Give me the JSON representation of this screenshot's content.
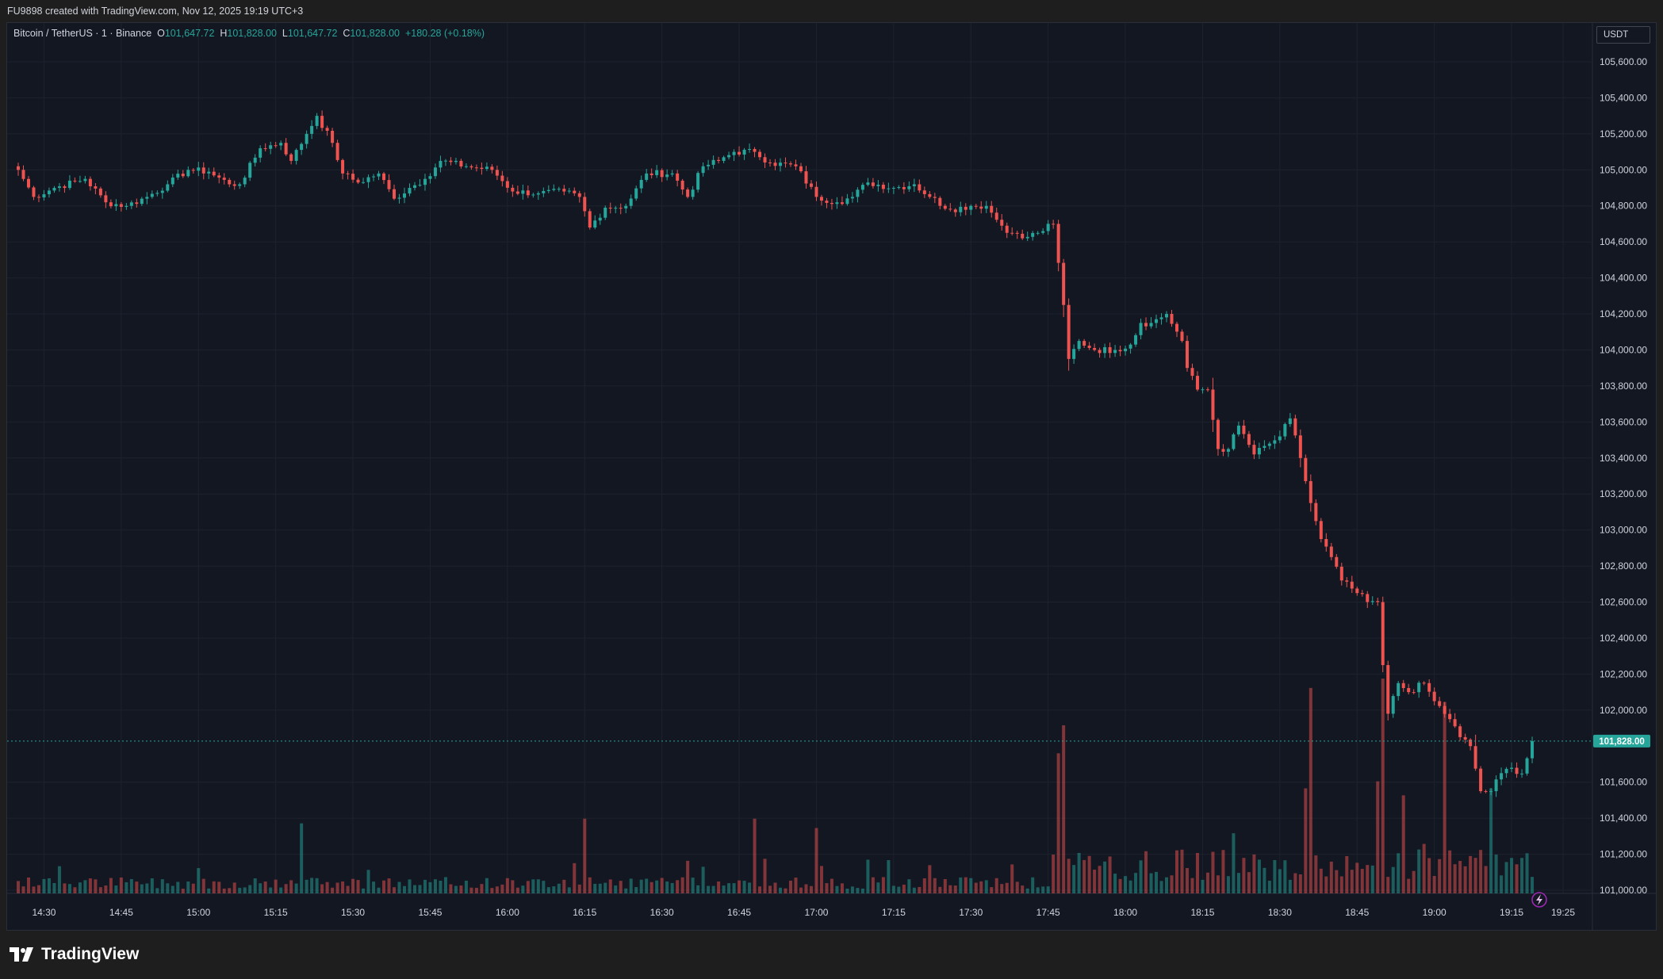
{
  "header": {
    "attribution": "FU9898 created with TradingView.com, Nov 12, 2025 19:19 UTC+3"
  },
  "legend": {
    "symbol": "Bitcoin / TetherUS · 1 · Binance",
    "open_key": "O",
    "open": "101,647.72",
    "high_key": "H",
    "high": "101,828.00",
    "low_key": "L",
    "low": "101,647.72",
    "close_key": "C",
    "close": "101,828.00",
    "change": "+180.28 (+0.18%)"
  },
  "currency_button": "USDT",
  "footer": {
    "brand": "TradingView",
    "logo_icon": "tradingview-logo-icon"
  },
  "colors": {
    "up": "#26a69a",
    "down": "#ef5350",
    "background": "#131722",
    "grid": "#1e222d",
    "text": "#d1d4dc"
  },
  "chart_data": {
    "type": "candlestick",
    "symbol": "BTCUSDT",
    "interval": "1",
    "y_axis": {
      "ylim": [
        100900,
        105650
      ],
      "ticks": [
        "105,600.00",
        "105,400.00",
        "105,200.00",
        "105,000.00",
        "104,800.00",
        "104,600.00",
        "104,400.00",
        "104,200.00",
        "104,000.00",
        "103,800.00",
        "103,600.00",
        "103,400.00",
        "103,200.00",
        "103,000.00",
        "102,800.00",
        "102,600.00",
        "102,400.00",
        "102,200.00",
        "102,000.00",
        "101,600.00",
        "101,400.00",
        "101,200.00",
        "101,000.00"
      ],
      "last_price_label": "101,828.00",
      "last_price": 101828
    },
    "x_axis": {
      "ticks": [
        "14:30",
        "14:45",
        "15:00",
        "15:15",
        "15:30",
        "15:45",
        "16:00",
        "16:15",
        "16:30",
        "16:45",
        "17:00",
        "17:15",
        "17:30",
        "17:45",
        "18:00",
        "18:15",
        "18:30",
        "18:45",
        "19:00",
        "19:15",
        "19:25"
      ]
    },
    "close_anchors": [
      {
        "t": "14:25",
        "close": 105000
      },
      {
        "t": "14:28",
        "close": 104850
      },
      {
        "t": "14:32",
        "close": 104900
      },
      {
        "t": "14:38",
        "close": 104950
      },
      {
        "t": "14:42",
        "close": 104820
      },
      {
        "t": "14:46",
        "close": 104800
      },
      {
        "t": "14:50",
        "close": 104850
      },
      {
        "t": "14:54",
        "close": 104920
      },
      {
        "t": "14:58",
        "close": 105000
      },
      {
        "t": "15:02",
        "close": 104990
      },
      {
        "t": "15:06",
        "close": 104920
      },
      {
        "t": "15:08",
        "close": 104920
      },
      {
        "t": "15:12",
        "close": 105120
      },
      {
        "t": "15:16",
        "close": 105150
      },
      {
        "t": "15:18",
        "close": 105050
      },
      {
        "t": "15:21",
        "close": 105200
      },
      {
        "t": "15:23",
        "close": 105300
      },
      {
        "t": "15:26",
        "close": 105150
      },
      {
        "t": "15:28",
        "close": 104980
      },
      {
        "t": "15:31",
        "close": 104930
      },
      {
        "t": "15:35",
        "close": 104980
      },
      {
        "t": "15:38",
        "close": 104840
      },
      {
        "t": "15:41",
        "close": 104900
      },
      {
        "t": "15:44",
        "close": 104950
      },
      {
        "t": "15:47",
        "close": 105050
      },
      {
        "t": "15:52",
        "close": 105020
      },
      {
        "t": "15:57",
        "close": 105000
      },
      {
        "t": "16:01",
        "close": 104880
      },
      {
        "t": "16:06",
        "close": 104870
      },
      {
        "t": "16:11",
        "close": 104880
      },
      {
        "t": "16:14",
        "close": 104850
      },
      {
        "t": "16:16",
        "close": 104680
      },
      {
        "t": "16:19",
        "close": 104790
      },
      {
        "t": "16:23",
        "close": 104800
      },
      {
        "t": "16:27",
        "close": 104980
      },
      {
        "t": "16:32",
        "close": 104980
      },
      {
        "t": "16:35",
        "close": 104850
      },
      {
        "t": "16:38",
        "close": 105020
      },
      {
        "t": "16:41",
        "close": 105050
      },
      {
        "t": "16:44",
        "close": 105100
      },
      {
        "t": "16:48",
        "close": 105100
      },
      {
        "t": "16:51",
        "close": 105040
      },
      {
        "t": "16:56",
        "close": 105020
      },
      {
        "t": "17:00",
        "close": 104850
      },
      {
        "t": "17:04",
        "close": 104820
      },
      {
        "t": "17:07",
        "close": 104850
      },
      {
        "t": "17:10",
        "close": 104930
      },
      {
        "t": "17:15",
        "close": 104900
      },
      {
        "t": "17:19",
        "close": 104920
      },
      {
        "t": "17:22",
        "close": 104850
      },
      {
        "t": "17:26",
        "close": 104780
      },
      {
        "t": "17:30",
        "close": 104800
      },
      {
        "t": "17:33",
        "close": 104800
      },
      {
        "t": "17:36",
        "close": 104690
      },
      {
        "t": "17:38",
        "close": 104650
      },
      {
        "t": "17:40",
        "close": 104620
      },
      {
        "t": "17:43",
        "close": 104650
      },
      {
        "t": "17:46",
        "close": 104700
      },
      {
        "t": "17:48",
        "close": 104250
      },
      {
        "t": "17:49",
        "close": 103950
      },
      {
        "t": "17:51",
        "close": 104050
      },
      {
        "t": "17:54",
        "close": 104000
      },
      {
        "t": "17:58",
        "close": 104000
      },
      {
        "t": "18:01",
        "close": 104030
      },
      {
        "t": "18:03",
        "close": 104150
      },
      {
        "t": "18:05",
        "close": 104150
      },
      {
        "t": "18:08",
        "close": 104200
      },
      {
        "t": "18:11",
        "close": 104050
      },
      {
        "t": "18:12",
        "close": 103900
      },
      {
        "t": "18:14",
        "close": 103780
      },
      {
        "t": "18:16",
        "close": 103780
      },
      {
        "t": "18:18",
        "close": 103450
      },
      {
        "t": "18:20",
        "close": 103450
      },
      {
        "t": "18:22",
        "close": 103580
      },
      {
        "t": "18:25",
        "close": 103420
      },
      {
        "t": "18:28",
        "close": 103480
      },
      {
        "t": "18:30",
        "close": 103520
      },
      {
        "t": "18:32",
        "close": 103620
      },
      {
        "t": "18:34",
        "close": 103400
      },
      {
        "t": "18:36",
        "close": 103150
      },
      {
        "t": "18:38",
        "close": 102950
      },
      {
        "t": "18:40",
        "close": 102850
      },
      {
        "t": "18:42",
        "close": 102720
      },
      {
        "t": "18:45",
        "close": 102650
      },
      {
        "t": "18:47",
        "close": 102600
      },
      {
        "t": "18:49",
        "close": 102600
      },
      {
        "t": "18:50",
        "close": 102250
      },
      {
        "t": "18:51",
        "close": 101980
      },
      {
        "t": "18:53",
        "close": 102150
      },
      {
        "t": "18:55",
        "close": 102100
      },
      {
        "t": "18:58",
        "close": 102150
      },
      {
        "t": "19:00",
        "close": 102050
      },
      {
        "t": "19:03",
        "close": 101950
      },
      {
        "t": "19:05",
        "close": 101850
      },
      {
        "t": "19:07",
        "close": 101800
      },
      {
        "t": "19:09",
        "close": 101550
      },
      {
        "t": "19:11",
        "close": 101550
      },
      {
        "t": "19:13",
        "close": 101650
      },
      {
        "t": "19:15",
        "close": 101680
      },
      {
        "t": "19:17",
        "close": 101647.72
      },
      {
        "t": "19:19",
        "close": 101828
      }
    ],
    "volume_spikes": [
      {
        "t": "17:48",
        "relative": 0.72
      },
      {
        "t": "18:36",
        "relative": 0.88
      },
      {
        "t": "18:35",
        "relative": 0.45
      },
      {
        "t": "18:50",
        "relative": 0.92
      },
      {
        "t": "18:49",
        "relative": 0.48
      },
      {
        "t": "19:02",
        "relative": 0.82
      },
      {
        "t": "16:15",
        "relative": 0.32
      },
      {
        "t": "15:20",
        "relative": 0.3
      },
      {
        "t": "17:00",
        "relative": 0.28
      },
      {
        "t": "16:48",
        "relative": 0.32
      },
      {
        "t": "19:11",
        "relative": 0.45
      },
      {
        "t": "18:54",
        "relative": 0.42
      },
      {
        "t": "17:47",
        "relative": 0.6
      }
    ]
  }
}
